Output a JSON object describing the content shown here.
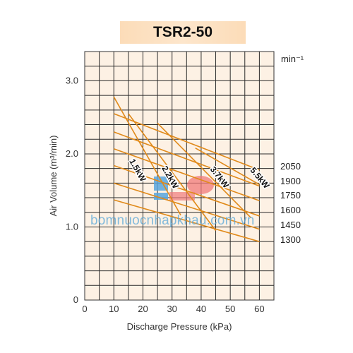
{
  "chart_data": {
    "type": "line",
    "title": "TSR2-50",
    "xlabel": "Discharge Pressure  (kPa)",
    "ylabel": "Air Volume (m³/min)",
    "unit_label": "min⁻¹",
    "xlim": [
      0,
      65
    ],
    "ylim": [
      0,
      3.4
    ],
    "x_ticks": [
      "0",
      "10",
      "20",
      "30",
      "40",
      "50",
      "60"
    ],
    "y_ticks": [
      "0",
      "1.0",
      "2.0",
      "3.0"
    ],
    "grid": true,
    "series": [
      {
        "name": "2050",
        "x": [
          10,
          60
        ],
        "y": [
          2.55,
          1.78
        ]
      },
      {
        "name": "1900",
        "x": [
          10,
          60
        ],
        "y": [
          2.3,
          1.56
        ]
      },
      {
        "name": "1750",
        "x": [
          10,
          60
        ],
        "y": [
          2.07,
          1.36
        ]
      },
      {
        "name": "1600",
        "x": [
          10,
          60
        ],
        "y": [
          1.84,
          1.15
        ]
      },
      {
        "name": "1450",
        "x": [
          10,
          60
        ],
        "y": [
          1.6,
          0.97
        ]
      },
      {
        "name": "1300",
        "x": [
          10,
          60
        ],
        "y": [
          1.37,
          0.8
        ]
      }
    ],
    "power_limits": [
      {
        "label": "1.5kW",
        "x": [
          10,
          33
        ],
        "y": [
          2.78,
          1.16
        ]
      },
      {
        "label": "2.2kW",
        "x": [
          15,
          45
        ],
        "y": [
          2.55,
          0.95
        ]
      },
      {
        "label": "3.7kW",
        "x": [
          25,
          57
        ],
        "y": [
          2.42,
          1.13
        ]
      },
      {
        "label": "5.5kW",
        "x": [
          38,
          60
        ],
        "y": [
          2.08,
          1.58
        ]
      }
    ],
    "right_labels": [
      "2050",
      "1900",
      "1750",
      "1600",
      "1450",
      "1300"
    ]
  },
  "watermark": "bomnuocnhapkhau.com.vn"
}
